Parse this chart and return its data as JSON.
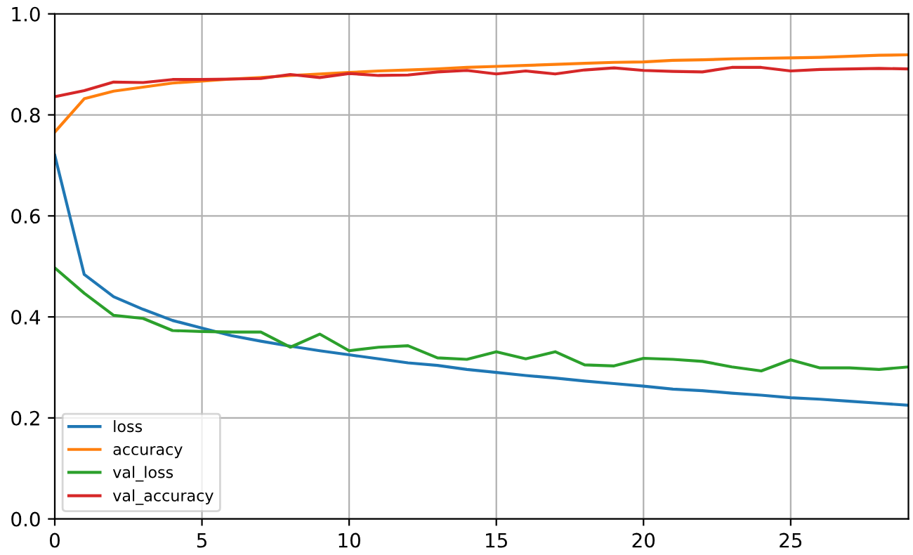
{
  "chart_data": {
    "type": "line",
    "x": [
      0,
      1,
      2,
      3,
      4,
      5,
      6,
      7,
      8,
      9,
      10,
      11,
      12,
      13,
      14,
      15,
      16,
      17,
      18,
      19,
      20,
      21,
      22,
      23,
      24,
      25,
      26,
      27,
      28,
      29
    ],
    "series": [
      {
        "name": "loss",
        "color": "#1f77b4",
        "values": [
          0.72,
          0.484,
          0.44,
          0.415,
          0.393,
          0.378,
          0.363,
          0.352,
          0.342,
          0.333,
          0.325,
          0.317,
          0.309,
          0.304,
          0.296,
          0.29,
          0.284,
          0.279,
          0.273,
          0.268,
          0.263,
          0.257,
          0.254,
          0.249,
          0.245,
          0.24,
          0.237,
          0.233,
          0.229,
          0.225
        ]
      },
      {
        "name": "accuracy",
        "color": "#ff7f0e",
        "values": [
          0.766,
          0.832,
          0.847,
          0.855,
          0.863,
          0.867,
          0.871,
          0.874,
          0.878,
          0.881,
          0.884,
          0.887,
          0.889,
          0.891,
          0.894,
          0.896,
          0.898,
          0.9,
          0.902,
          0.904,
          0.905,
          0.908,
          0.909,
          0.911,
          0.912,
          0.913,
          0.914,
          0.916,
          0.918,
          0.919
        ]
      },
      {
        "name": "val_loss",
        "color": "#2ca02c",
        "values": [
          0.497,
          0.447,
          0.403,
          0.397,
          0.373,
          0.371,
          0.37,
          0.37,
          0.34,
          0.366,
          0.333,
          0.34,
          0.343,
          0.319,
          0.316,
          0.331,
          0.317,
          0.331,
          0.305,
          0.303,
          0.318,
          0.316,
          0.312,
          0.301,
          0.293,
          0.315,
          0.299,
          0.299,
          0.296,
          0.301
        ]
      },
      {
        "name": "val_accuracy",
        "color": "#d62728",
        "values": [
          0.836,
          0.848,
          0.865,
          0.864,
          0.87,
          0.87,
          0.871,
          0.872,
          0.88,
          0.874,
          0.882,
          0.878,
          0.879,
          0.885,
          0.888,
          0.881,
          0.887,
          0.881,
          0.889,
          0.893,
          0.888,
          0.886,
          0.885,
          0.894,
          0.894,
          0.887,
          0.89,
          0.891,
          0.892,
          0.891
        ]
      }
    ],
    "xlim": [
      0,
      29
    ],
    "xticks": [
      0,
      5,
      10,
      15,
      20,
      25
    ],
    "ylim": [
      0,
      1
    ],
    "yticks": [
      {
        "value": 0,
        "label": "0.0"
      },
      {
        "value": 0.2,
        "label": "0.2"
      },
      {
        "value": 0.4,
        "label": "0.4"
      },
      {
        "value": 0.6,
        "label": "0.6"
      },
      {
        "value": 0.8,
        "label": "0.8"
      },
      {
        "value": 1,
        "label": "1.0"
      }
    ],
    "grid": true,
    "legend": "lower left",
    "line_style": "solid",
    "marker": "none"
  }
}
